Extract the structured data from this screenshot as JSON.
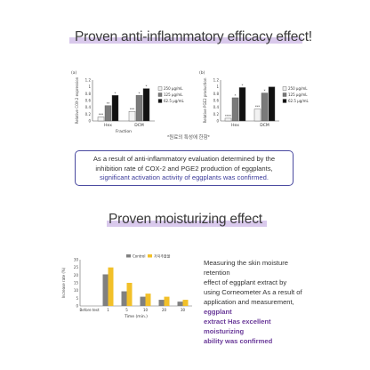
{
  "section1": {
    "title": "Proven anti-inflammatory efficacy effect!",
    "note": "*원료의 특성에 한함*",
    "summary_line1": "As a result of anti-inflammatory evaluation determined by the",
    "summary_line2": "inhibition rate of COX-2 and PGE2 production of eggplants,",
    "summary_highlight": "significant activation activity of eggplants was confirmed."
  },
  "section2": {
    "title": "Proven moisturizing effect",
    "text_lines": [
      "Measuring the skin moisture retention",
      "effect of eggplant extract by",
      "using Corneometer As a result of",
      "application and measurement,"
    ],
    "highlight_first": "eggplant",
    "highlight_lines": [
      "extract Has excellent moisturizing",
      "ability was confirmed"
    ]
  },
  "colors": {
    "title_highlight": "#d9c9ec",
    "box_border": "#4a4aa0",
    "bar_light": "#f2f2f2",
    "bar_mid": "#7a7a7a",
    "bar_dark": "#111111",
    "control": "#808080",
    "treated": "#f2c029"
  },
  "chart_data": [
    {
      "type": "bar",
      "panel": "(a)",
      "ylabel": "Relative COX-2 expression",
      "xlabel": "Fraction",
      "categories": [
        "Hex",
        "DCM"
      ],
      "series": [
        {
          "name": "250 μg/mL",
          "values": [
            0.12,
            0.28
          ]
        },
        {
          "name": "125 μg/mL",
          "values": [
            0.45,
            0.75
          ]
        },
        {
          "name": "62.5 μg/mL",
          "values": [
            0.75,
            0.95
          ]
        }
      ],
      "annotations": [
        [
          "***",
          "**",
          "*"
        ],
        [
          "***",
          "*",
          "*"
        ]
      ],
      "ylim": [
        0,
        1.2
      ],
      "yticks": [
        "0",
        "0.2",
        "0.4",
        "0.6",
        "0.8",
        "1",
        "1.2"
      ]
    },
    {
      "type": "bar",
      "panel": "(b)",
      "ylabel": "Relative PGE2 production",
      "xlabel": "",
      "categories": [
        "Hex",
        "DCM"
      ],
      "series": [
        {
          "name": "250 μg/mL",
          "values": [
            0.08,
            0.35
          ]
        },
        {
          "name": "125 μg/mL",
          "values": [
            0.68,
            0.82
          ]
        },
        {
          "name": "62.5 μg/mL",
          "values": [
            0.98,
            1.0
          ]
        }
      ],
      "annotations": [
        [
          "****",
          "*",
          "*"
        ],
        [
          "***",
          "*",
          ""
        ]
      ],
      "ylim": [
        0,
        1.2
      ],
      "yticks": [
        "0",
        "0.2",
        "0.4",
        "0.6",
        "0.8",
        "1",
        "1.2"
      ]
    },
    {
      "type": "bar",
      "ylabel": "Increase rate (%)",
      "xlabel": "Time (min.)",
      "categories": [
        "Before test",
        "1",
        "5",
        "10",
        "20",
        "30"
      ],
      "series": [
        {
          "name": "Control",
          "values": [
            0,
            20.5,
            9.5,
            6,
            4,
            2.8
          ]
        },
        {
          "name": "가지추출물",
          "values": [
            0,
            25,
            15,
            8,
            6,
            4
          ]
        }
      ],
      "ylim": [
        0,
        30
      ],
      "yticks": [
        "0",
        "5",
        "10",
        "15",
        "20",
        "25",
        "30"
      ]
    }
  ]
}
